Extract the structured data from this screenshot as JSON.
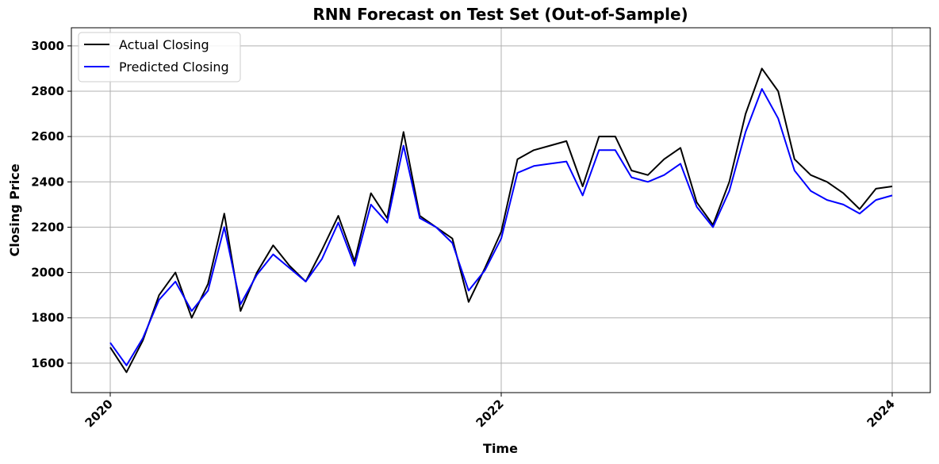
{
  "chart_data": {
    "type": "line",
    "title": "RNN Forecast on Test Set (Out-of-Sample)",
    "xlabel": "Time",
    "ylabel": "Closing Price",
    "x_ticks": [
      "2020",
      "2022",
      "2024"
    ],
    "x_range": [
      "2020-01",
      "2024-01"
    ],
    "y_ticks": [
      1600,
      1800,
      2000,
      2200,
      2400,
      2600,
      2800,
      3000
    ],
    "ylim": [
      1470,
      3080
    ],
    "grid": true,
    "legend_position": "top-left",
    "x": [
      "2020-01",
      "2020-02",
      "2020-03",
      "2020-04",
      "2020-05",
      "2020-06",
      "2020-07",
      "2020-08",
      "2020-09",
      "2020-10",
      "2020-11",
      "2020-12",
      "2021-01",
      "2021-02",
      "2021-03",
      "2021-04",
      "2021-05",
      "2021-06",
      "2021-07",
      "2021-08",
      "2021-09",
      "2021-10",
      "2021-11",
      "2021-12",
      "2022-01",
      "2022-02",
      "2022-03",
      "2022-04",
      "2022-05",
      "2022-06",
      "2022-07",
      "2022-08",
      "2022-09",
      "2022-10",
      "2022-11",
      "2022-12",
      "2023-01",
      "2023-02",
      "2023-03",
      "2023-04",
      "2023-05",
      "2023-06",
      "2023-07",
      "2023-08",
      "2023-09",
      "2023-10",
      "2023-11",
      "2023-12",
      "2024-01"
    ],
    "series": [
      {
        "name": "Actual Closing",
        "color": "#000000",
        "values": [
          1670,
          1560,
          1700,
          1900,
          2000,
          1800,
          1950,
          2260,
          1830,
          2000,
          2120,
          2030,
          1960,
          2100,
          2250,
          2050,
          2350,
          2240,
          2620,
          2250,
          2200,
          2150,
          1870,
          2020,
          2180,
          2500,
          2540,
          2560,
          2580,
          2380,
          2600,
          2600,
          2450,
          2430,
          2500,
          2550,
          2310,
          2210,
          2400,
          2700,
          2900,
          2800,
          2500,
          2430,
          2400,
          2350,
          2280,
          2370,
          2380
        ]
      },
      {
        "name": "Predicted Closing",
        "color": "#0000ff",
        "values": [
          1690,
          1590,
          1710,
          1880,
          1960,
          1830,
          1920,
          2200,
          1860,
          1990,
          2080,
          2020,
          1960,
          2060,
          2220,
          2030,
          2300,
          2220,
          2560,
          2240,
          2200,
          2130,
          1920,
          2010,
          2150,
          2440,
          2470,
          2480,
          2490,
          2340,
          2540,
          2540,
          2420,
          2400,
          2430,
          2480,
          2290,
          2200,
          2360,
          2620,
          2810,
          2680,
          2450,
          2360,
          2320,
          2300,
          2260,
          2320,
          2340
        ]
      }
    ]
  }
}
